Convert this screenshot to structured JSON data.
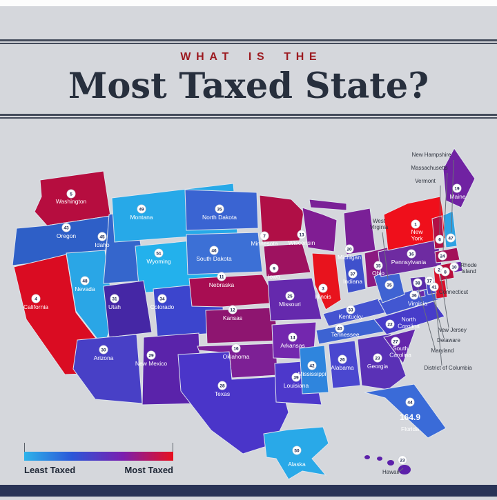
{
  "header": {
    "kicker": "WHAT IS THE",
    "title": "Most Taxed State?"
  },
  "legend": {
    "least_label": "Least Taxed",
    "most_label": "Most Taxed",
    "gradient": [
      "#2db3ea",
      "#2b57d8",
      "#7a1fb0",
      "#e80f1d"
    ]
  },
  "map_data": {
    "type": "choropleth",
    "metric": "tax rank (1 = most taxed)",
    "states": [
      {
        "abbr": "WA",
        "name": "Washington",
        "rank": "5",
        "color": "#b60d3f"
      },
      {
        "abbr": "OR",
        "name": "Oregon",
        "rank": "43",
        "color": "#2e5fc7"
      },
      {
        "abbr": "CA",
        "name": "California",
        "rank": "4",
        "color": "#da0c22"
      },
      {
        "abbr": "NV",
        "name": "Nevada",
        "rank": "48",
        "color": "#2aa6e6"
      },
      {
        "abbr": "ID",
        "name": "Idaho",
        "rank": "45",
        "color": "#3566cc"
      },
      {
        "abbr": "MT",
        "name": "Montana",
        "rank": "49",
        "color": "#27a9e8"
      },
      {
        "abbr": "WY",
        "name": "Wyoming",
        "rank": "51",
        "color": "#23b1ec"
      },
      {
        "abbr": "UT",
        "name": "Utah",
        "rank": "31",
        "color": "#4527a5"
      },
      {
        "abbr": "CO",
        "name": "Colorado",
        "rank": "34",
        "color": "#3c45cd"
      },
      {
        "abbr": "AZ",
        "name": "Arizona",
        "rank": "30",
        "color": "#4840c6"
      },
      {
        "abbr": "NM",
        "name": "New Mexico",
        "rank": "29",
        "color": "#5a23aa"
      },
      {
        "abbr": "ND",
        "name": "North Dakota",
        "rank": "35",
        "color": "#3a64d2"
      },
      {
        "abbr": "SD",
        "name": "South Dakota",
        "rank": "46",
        "color": "#3c70d6"
      },
      {
        "abbr": "NE",
        "name": "Nebraska",
        "rank": "11",
        "color": "#a80d52"
      },
      {
        "abbr": "KS",
        "name": "Kansas",
        "rank": "12",
        "color": "#8e1570"
      },
      {
        "abbr": "OK",
        "name": "Oklahoma",
        "rank": "16",
        "color": "#7d2095"
      },
      {
        "abbr": "TX",
        "name": "Texas",
        "rank": "28",
        "color": "#4a35c9"
      },
      {
        "abbr": "MN",
        "name": "Minnesota",
        "rank": "7",
        "color": "#b00f46"
      },
      {
        "abbr": "IA",
        "name": "Iowa",
        "rank": "9",
        "color": "#9e1260"
      },
      {
        "abbr": "MO",
        "name": "Missouri",
        "rank": "25",
        "color": "#6529ad"
      },
      {
        "abbr": "AR",
        "name": "Arkansas",
        "rank": "14",
        "color": "#7327ae"
      },
      {
        "abbr": "LA",
        "name": "Louisiana",
        "rank": "39",
        "color": "#4d38cb"
      },
      {
        "abbr": "WI",
        "name": "Wisconsin",
        "rank": "13",
        "color": "#801d93"
      },
      {
        "abbr": "IL",
        "name": "Illinois",
        "rank": "3",
        "color": "#e8131d"
      },
      {
        "abbr": "MI",
        "name": "Michigan",
        "rank": "20",
        "color": "#7a2097"
      },
      {
        "abbr": "IN",
        "name": "Indiana",
        "rank": "37",
        "color": "#3f51cc"
      },
      {
        "abbr": "OH",
        "name": "Ohio",
        "rank": "15",
        "color": "#8c1a81"
      },
      {
        "abbr": "KY",
        "name": "Kentucky",
        "rank": "33",
        "color": "#4453d0"
      },
      {
        "abbr": "TN",
        "name": "Tennessee",
        "rank": "40",
        "color": "#3d63d2"
      },
      {
        "abbr": "MS",
        "name": "Mississippi",
        "rank": "42",
        "color": "#2f85dd"
      },
      {
        "abbr": "AL",
        "name": "Alabama",
        "rank": "26",
        "color": "#4a47cf"
      },
      {
        "abbr": "GA",
        "name": "Georgia",
        "rank": "23",
        "color": "#5a31b6"
      },
      {
        "abbr": "FL",
        "name": "Florida",
        "rank": "44",
        "value": "164.9",
        "color": "#3a6bd8"
      },
      {
        "abbr": "SC",
        "name": "South Carolina",
        "rank": "27",
        "color": "#6527ac"
      },
      {
        "abbr": "NC",
        "name": "North Carolina",
        "rank": "22",
        "color": "#473cc9"
      },
      {
        "abbr": "VA",
        "name": "Virginia",
        "rank": "36",
        "color": "#4257d1"
      },
      {
        "abbr": "WV",
        "name": "West Virginia",
        "rank": "35",
        "color": "#3f63d2"
      },
      {
        "abbr": "PA",
        "name": "Pennsylvania",
        "rank": "16",
        "color": "#6e2ba1"
      },
      {
        "abbr": "NY",
        "name": "New York",
        "rank": "1",
        "color": "#ef0f1b"
      },
      {
        "abbr": "NJ",
        "name": "New Jersey",
        "rank": "2",
        "color": "#d9122d"
      },
      {
        "abbr": "MD",
        "name": "Maryland",
        "rank": "38",
        "color": "#5b2caa"
      },
      {
        "abbr": "DE",
        "name": "Delaware",
        "rank": "17",
        "color": "#4b47c9"
      },
      {
        "abbr": "DC",
        "name": "District of Columbia",
        "rank": "41",
        "color": "#6b29aa"
      },
      {
        "abbr": "VT",
        "name": "Vermont",
        "rank": "6",
        "color": "#b11046"
      },
      {
        "abbr": "NH",
        "name": "New Hampshire",
        "rank": "47",
        "color": "#2ea3e4"
      },
      {
        "abbr": "MA",
        "name": "Massachusetts",
        "rank": "24",
        "color": "#a31159"
      },
      {
        "abbr": "RI",
        "name": "Rhode Island",
        "rank": "10",
        "color": "#6b29aa"
      },
      {
        "abbr": "CT",
        "name": "Connecticut",
        "rank": "8",
        "color": "#b90e3d"
      },
      {
        "abbr": "ME",
        "name": "Maine",
        "rank": "19",
        "color": "#7022a2"
      },
      {
        "abbr": "AK",
        "name": "Alaska",
        "rank": "50",
        "color": "#29a9e8"
      },
      {
        "abbr": "HI",
        "name": "Hawaii",
        "rank": "23",
        "color": "#5c20aa"
      }
    ]
  }
}
